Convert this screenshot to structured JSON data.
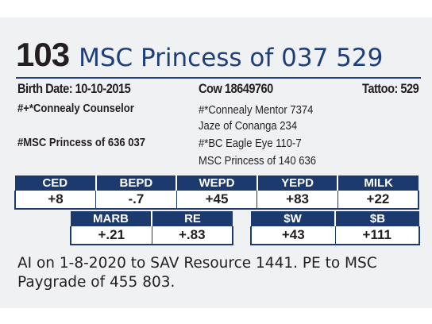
{
  "lot": {
    "number": "103",
    "name": "MSC Princess of 037 529"
  },
  "info": {
    "birth_date": "Birth Date: 10-10-2015",
    "cow_id": "Cow 18649760",
    "tattoo": "Tattoo: 529"
  },
  "pedigree": {
    "sire": "#+*Connealy Counselor",
    "dam": "#MSC Princess of 636 037",
    "paternal": [
      "#*Connealy Mentor 7374",
      "Jaze of Conanga 234"
    ],
    "maternal": [
      "#*BC Eagle Eye 110-7",
      "MSC Princess of 140 636"
    ]
  },
  "epd_row1": {
    "headers": [
      "CED",
      "BEPD",
      "WEPD",
      "YEPD",
      "MILK"
    ],
    "values": [
      "+8",
      "-.7",
      "+45",
      "+83",
      "+22"
    ]
  },
  "epd_row2": {
    "headers": [
      "MARB",
      "RE"
    ],
    "values": [
      "+.21",
      "+.83"
    ]
  },
  "epd_row3": {
    "headers": [
      "$W",
      "$B"
    ],
    "values": [
      "+43",
      "+111"
    ]
  },
  "notes": "AI on 1-8-2020 to SAV Resource 1441. PE to MSC Paygrade of 455 803."
}
